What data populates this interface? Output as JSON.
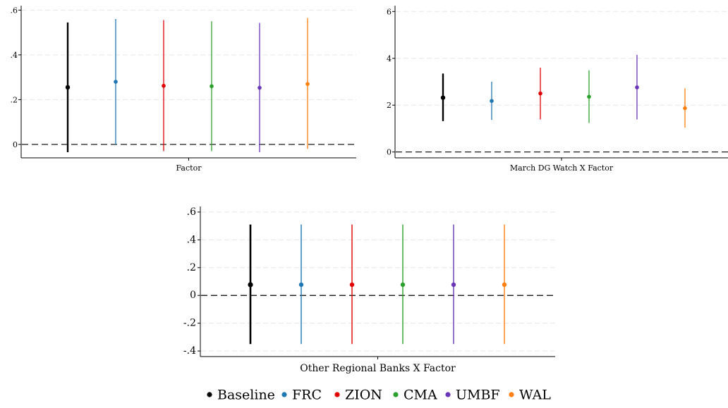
{
  "series_colors": {
    "Baseline": "#000000",
    "FRC": "#1f77b4",
    "ZION": "#e00000",
    "CMA": "#2ca02c",
    "UMBF": "#6a35b7",
    "WAL": "#ff7f0e"
  },
  "legend": {
    "items": [
      {
        "label": "Baseline",
        "color": "#000000"
      },
      {
        "label": "FRC",
        "color": "#1f77b4"
      },
      {
        "label": "ZION",
        "color": "#e00000"
      },
      {
        "label": "CMA",
        "color": "#2ca02c"
      },
      {
        "label": "UMBF",
        "color": "#6a35b7"
      },
      {
        "label": "WAL",
        "color": "#ff7f0e"
      }
    ]
  },
  "chart_data": [
    {
      "type": "scatter",
      "xlabel": "Factor",
      "ylim": [
        -0.06,
        0.62
      ],
      "yticks": [
        0,
        0.2,
        0.4,
        0.6
      ],
      "ytick_labels": [
        "0",
        ".2",
        ".4",
        ".6"
      ],
      "reference_line": 0,
      "grid": "horizontal",
      "series": [
        {
          "name": "Baseline",
          "estimate": 0.255,
          "ci": [
            -0.035,
            0.545
          ]
        },
        {
          "name": "FRC",
          "estimate": 0.28,
          "ci": [
            0.0,
            0.56
          ]
        },
        {
          "name": "ZION",
          "estimate": 0.262,
          "ci": [
            -0.03,
            0.555
          ]
        },
        {
          "name": "CMA",
          "estimate": 0.26,
          "ci": [
            -0.03,
            0.55
          ]
        },
        {
          "name": "UMBF",
          "estimate": 0.253,
          "ci": [
            -0.035,
            0.543
          ]
        },
        {
          "name": "WAL",
          "estimate": 0.27,
          "ci": [
            -0.02,
            0.565
          ]
        }
      ]
    },
    {
      "type": "scatter",
      "xlabel": "March DG Watch X Factor",
      "ylim": [
        -0.25,
        6.25
      ],
      "yticks": [
        0,
        2,
        4,
        6
      ],
      "ytick_labels": [
        "0",
        "2",
        "4",
        "6"
      ],
      "reference_line": 0,
      "grid": "horizontal",
      "series": [
        {
          "name": "Baseline",
          "estimate": 2.32,
          "ci": [
            1.32,
            3.35
          ]
        },
        {
          "name": "FRC",
          "estimate": 2.18,
          "ci": [
            1.37,
            3.0
          ]
        },
        {
          "name": "ZION",
          "estimate": 2.5,
          "ci": [
            1.39,
            3.6
          ]
        },
        {
          "name": "CMA",
          "estimate": 2.36,
          "ci": [
            1.24,
            3.49
          ]
        },
        {
          "name": "UMBF",
          "estimate": 2.76,
          "ci": [
            1.39,
            4.15
          ]
        },
        {
          "name": "WAL",
          "estimate": 1.87,
          "ci": [
            1.04,
            2.72
          ]
        }
      ]
    },
    {
      "type": "scatter",
      "xlabel": "Other Regional Banks X Factor",
      "ylim": [
        -0.44,
        0.64
      ],
      "yticks": [
        -0.4,
        -0.2,
        0,
        0.2,
        0.4,
        0.6
      ],
      "ytick_labels": [
        "-.4",
        "-.2",
        "0",
        ".2",
        ".4",
        ".6"
      ],
      "reference_line": 0,
      "grid": "horizontal",
      "series": [
        {
          "name": "Baseline",
          "estimate": 0.077,
          "ci": [
            -0.35,
            0.51
          ]
        },
        {
          "name": "FRC",
          "estimate": 0.077,
          "ci": [
            -0.35,
            0.51
          ]
        },
        {
          "name": "ZION",
          "estimate": 0.077,
          "ci": [
            -0.35,
            0.51
          ]
        },
        {
          "name": "CMA",
          "estimate": 0.077,
          "ci": [
            -0.35,
            0.51
          ]
        },
        {
          "name": "UMBF",
          "estimate": 0.077,
          "ci": [
            -0.35,
            0.51
          ]
        },
        {
          "name": "WAL",
          "estimate": 0.077,
          "ci": [
            -0.35,
            0.51
          ]
        }
      ]
    }
  ]
}
